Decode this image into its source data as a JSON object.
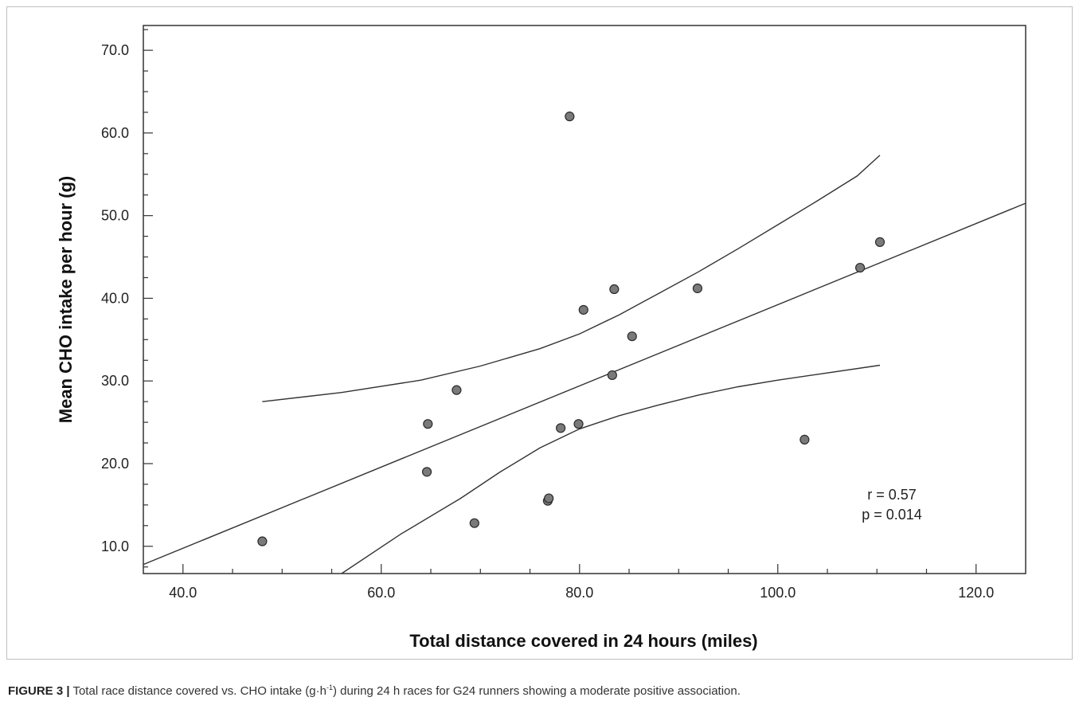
{
  "chart_data": {
    "type": "scatter",
    "title": "",
    "xlabel": "Total distance covered in 24 hours (miles)",
    "ylabel": "Mean CHO intake per hour (g)",
    "xlim": [
      36.0,
      125.0
    ],
    "ylim": [
      6.7,
      73.0
    ],
    "x_ticks": [
      "40.0",
      "60.0",
      "80.0",
      "100.0",
      "120.0"
    ],
    "x_tick_values": [
      40,
      60,
      80,
      100,
      120
    ],
    "y_ticks": [
      "10.0",
      "20.0",
      "30.0",
      "40.0",
      "50.0",
      "60.0",
      "70.0"
    ],
    "y_tick_values": [
      10,
      20,
      30,
      40,
      50,
      60,
      70
    ],
    "points": [
      {
        "x": 48.0,
        "y": 10.6
      },
      {
        "x": 64.6,
        "y": 19.0
      },
      {
        "x": 64.7,
        "y": 24.8
      },
      {
        "x": 67.6,
        "y": 28.9
      },
      {
        "x": 69.4,
        "y": 12.8
      },
      {
        "x": 76.8,
        "y": 15.5
      },
      {
        "x": 76.9,
        "y": 15.8
      },
      {
        "x": 78.1,
        "y": 24.3
      },
      {
        "x": 79.0,
        "y": 62.0
      },
      {
        "x": 79.9,
        "y": 24.8
      },
      {
        "x": 80.4,
        "y": 38.6
      },
      {
        "x": 83.3,
        "y": 30.7
      },
      {
        "x": 83.5,
        "y": 41.1
      },
      {
        "x": 85.3,
        "y": 35.4
      },
      {
        "x": 91.9,
        "y": 41.2
      },
      {
        "x": 102.7,
        "y": 22.9
      },
      {
        "x": 108.3,
        "y": 43.7
      },
      {
        "x": 110.3,
        "y": 46.8
      }
    ],
    "regression_line": [
      {
        "x": 36.0,
        "y": 7.8
      },
      {
        "x": 125.0,
        "y": 51.5
      }
    ],
    "upper_confidence_band": [
      {
        "x": 48.0,
        "y": 27.5
      },
      {
        "x": 56.0,
        "y": 28.6
      },
      {
        "x": 64.0,
        "y": 30.1
      },
      {
        "x": 70.0,
        "y": 31.8
      },
      {
        "x": 76.0,
        "y": 33.9
      },
      {
        "x": 80.0,
        "y": 35.7
      },
      {
        "x": 84.0,
        "y": 38.0
      },
      {
        "x": 88.0,
        "y": 40.6
      },
      {
        "x": 92.0,
        "y": 43.2
      },
      {
        "x": 96.0,
        "y": 46.0
      },
      {
        "x": 100.0,
        "y": 48.9
      },
      {
        "x": 104.0,
        "y": 51.8
      },
      {
        "x": 108.0,
        "y": 54.8
      },
      {
        "x": 110.3,
        "y": 57.3
      }
    ],
    "lower_confidence_band": [
      {
        "x": 56.0,
        "y": 6.7
      },
      {
        "x": 62.0,
        "y": 11.5
      },
      {
        "x": 68.0,
        "y": 15.8
      },
      {
        "x": 72.0,
        "y": 19.0
      },
      {
        "x": 76.0,
        "y": 21.9
      },
      {
        "x": 80.0,
        "y": 24.2
      },
      {
        "x": 84.0,
        "y": 25.8
      },
      {
        "x": 88.0,
        "y": 27.1
      },
      {
        "x": 92.0,
        "y": 28.3
      },
      {
        "x": 96.0,
        "y": 29.3
      },
      {
        "x": 100.0,
        "y": 30.1
      },
      {
        "x": 104.0,
        "y": 30.8
      },
      {
        "x": 110.3,
        "y": 31.9
      }
    ],
    "annotations": [
      "r = 0.57",
      "p = 0.014"
    ],
    "grid": false,
    "colors": {
      "points": "#7a7a7a",
      "point_stroke": "#2b2b2b",
      "lines": "#333333",
      "axes": "#333333"
    }
  },
  "caption": {
    "label": "FIGURE 3",
    "separator": "|",
    "text_before_unit": "Total race distance covered vs. CHO intake (g·h",
    "unit_superscript": "-1",
    "text_after_unit": ") during 24 h races for G24 runners showing a moderate positive association."
  }
}
